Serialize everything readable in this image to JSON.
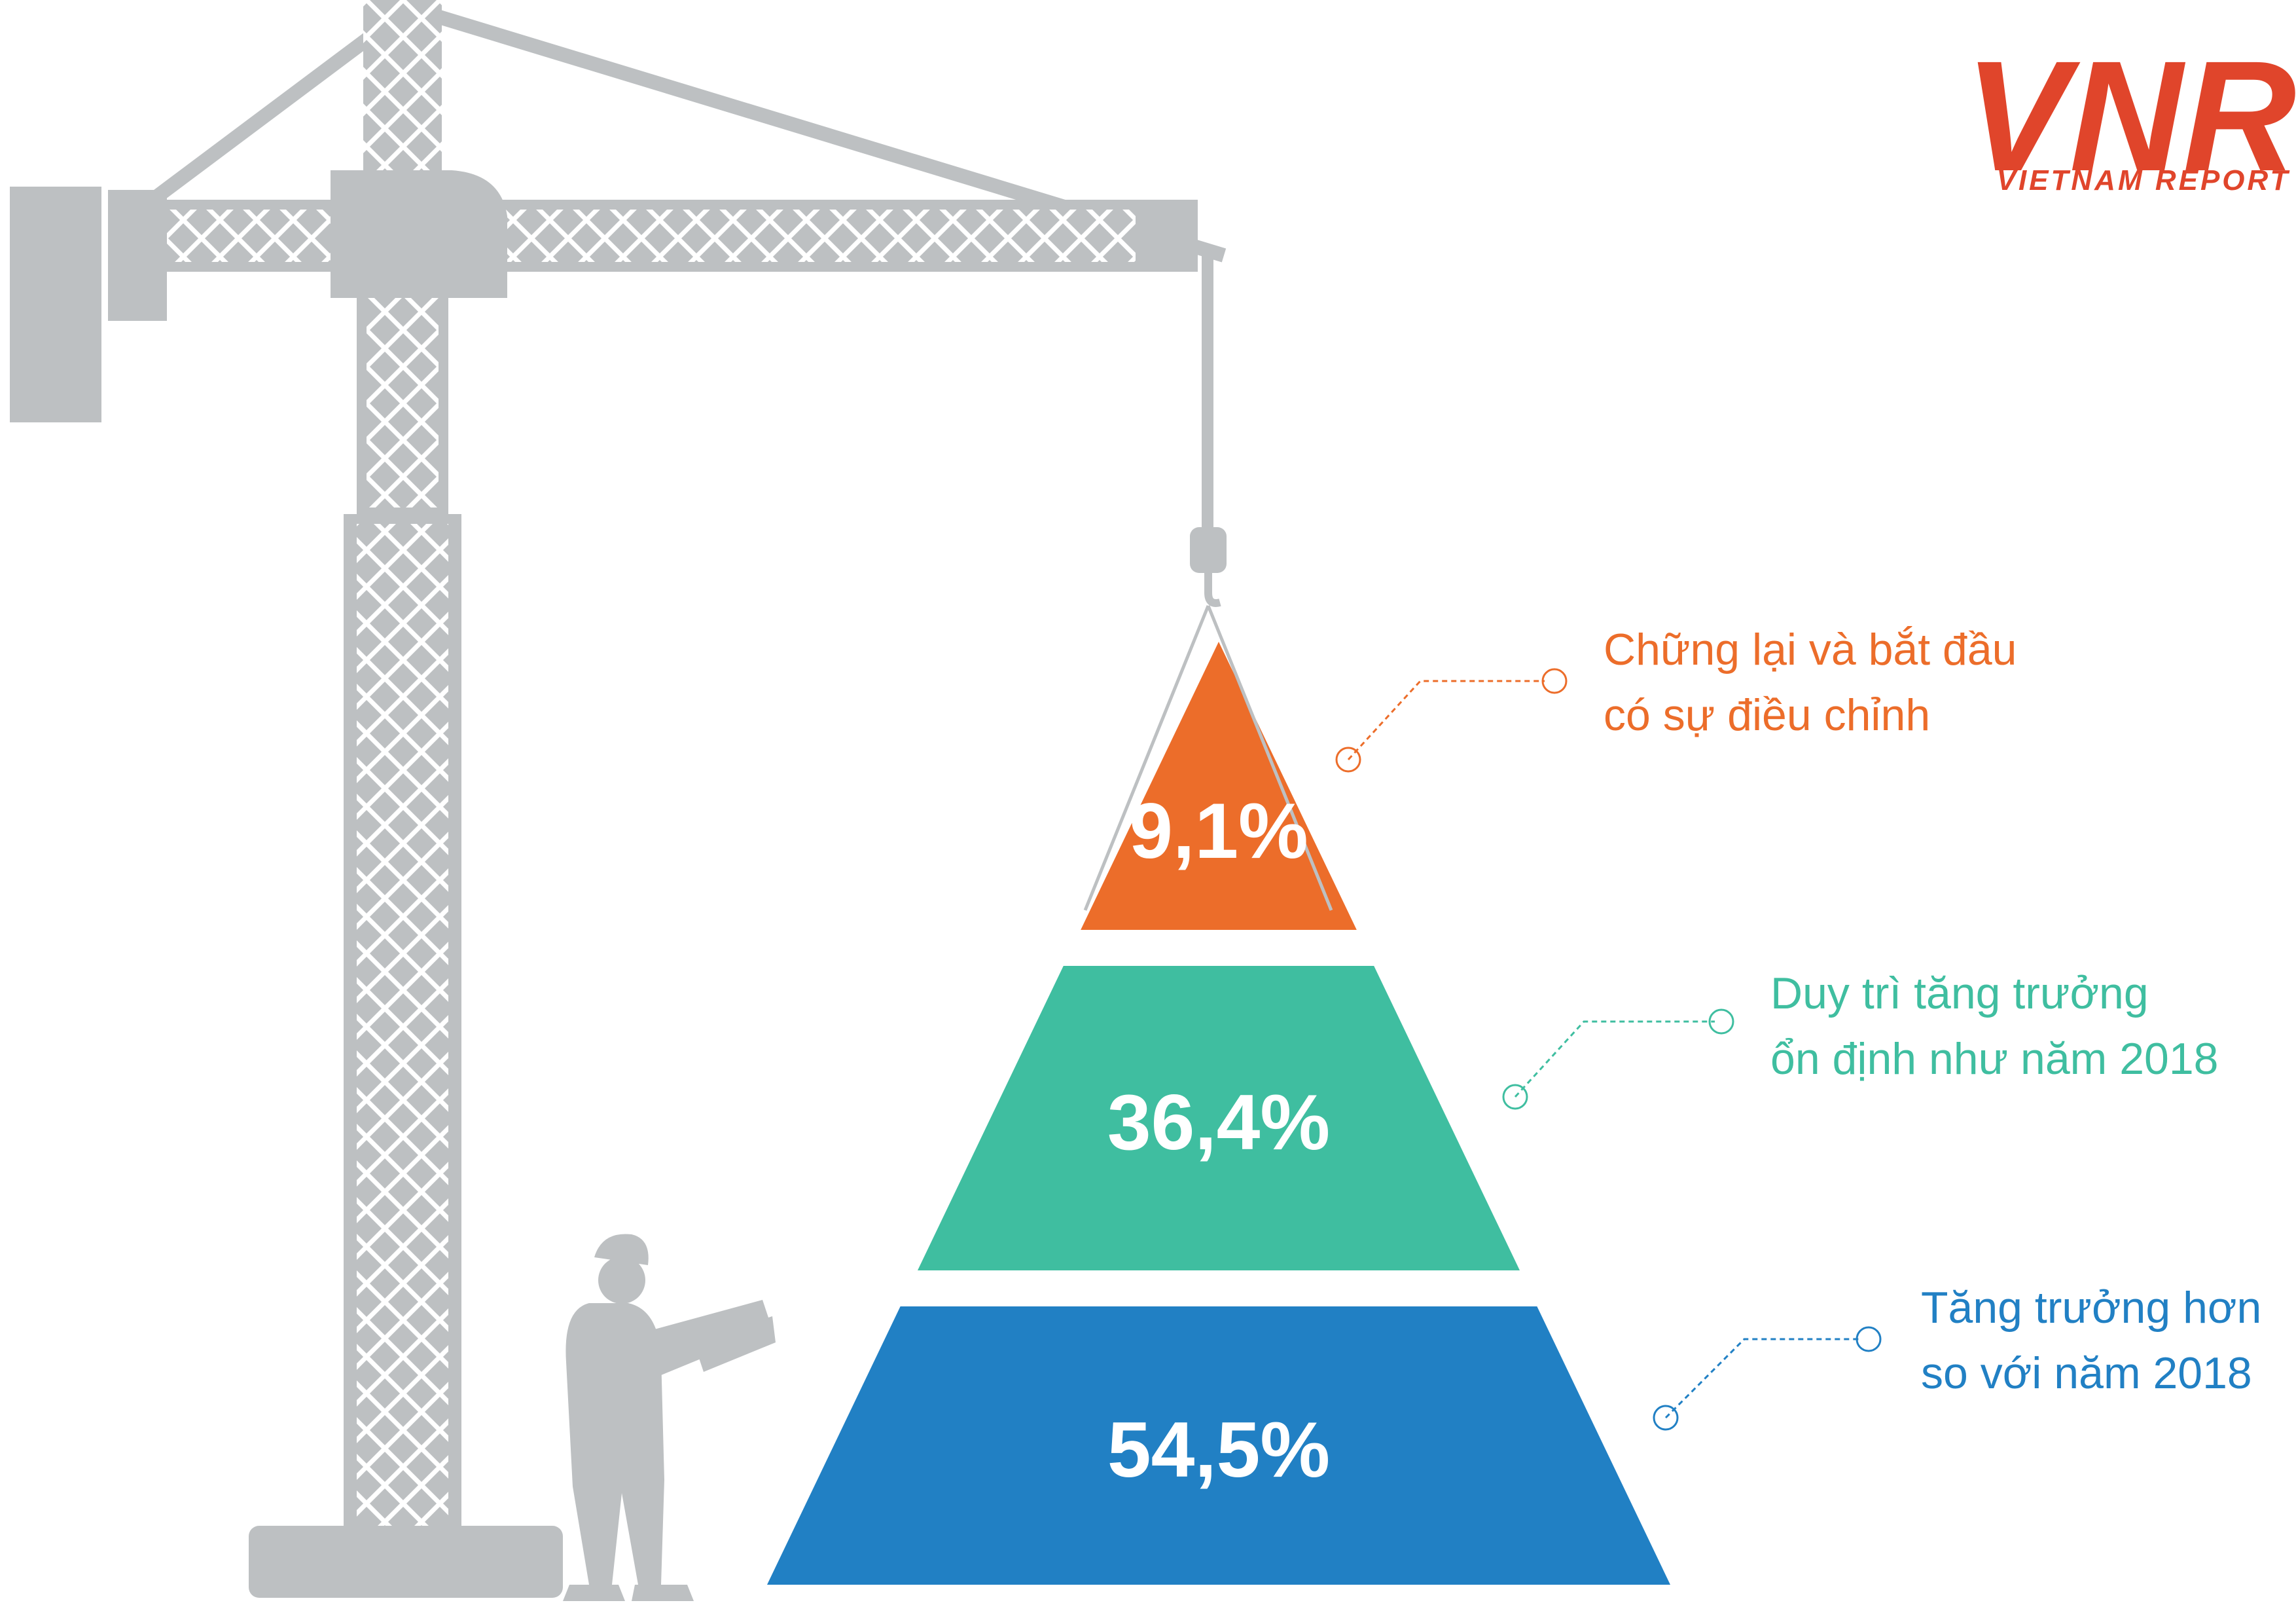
{
  "brand": {
    "logo_text": "VNR",
    "logo_subtitle": "VIETNAM REPORT",
    "logo_color": "#e0452b"
  },
  "chart_data": {
    "type": "pyramid",
    "unit": "%",
    "segments": [
      {
        "value_label": "9,1%",
        "value": 9.1,
        "label_lines": [
          "Chững lại và bắt đầu",
          "có sự điều chỉnh"
        ],
        "color": "#ec6d2a"
      },
      {
        "value_label": "36,4%",
        "value": 36.4,
        "label_lines": [
          "Duy trì tăng trưởng",
          "ổn định như năm 2018"
        ],
        "color": "#3fbea0"
      },
      {
        "value_label": "54,5%",
        "value": 54.5,
        "label_lines": [
          "Tăng trưởng hơn",
          "so với năm 2018"
        ],
        "color": "#2180c4"
      }
    ]
  },
  "illustration": {
    "crane_icon": "tower-crane-icon",
    "worker_icon": "construction-worker-icon",
    "color": "#bdc0c2"
  }
}
